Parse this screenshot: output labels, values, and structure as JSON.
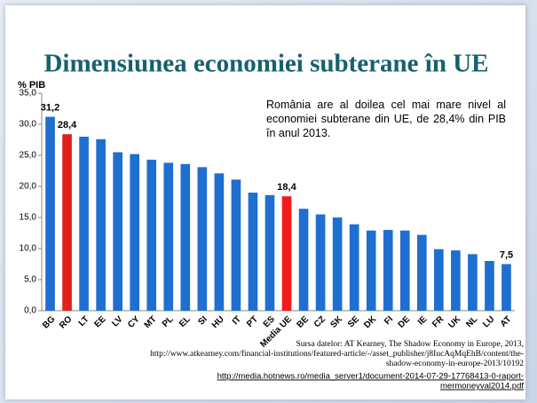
{
  "chart_data": {
    "type": "bar",
    "title": "Dimensiunea economiei subterane în UE",
    "y_label": "% PIB",
    "annotation": "România are al doilea cel mai mare nivel al economiei subterane din UE, de 28,4% din PIB în anul 2013.",
    "source": [
      "Sursa datelor: AT Kearney, The Shadow Economy in Europe, 2013,",
      "http://www.atkearney.com/financial-institutions/featured-article/-/asset_publisher/j8IucAqMqEhB/content/the-",
      "shadow-economy-in-europe-2013/10192"
    ],
    "link": [
      "http://media.hotnews.ro/media_server1/document-2014-07-29-17768413-0-raport-",
      "mermoneyval2014.pdf"
    ],
    "categories": [
      "BG",
      "RO",
      "LT",
      "EE",
      "LV",
      "CY",
      "MT",
      "PL",
      "EL",
      "SI",
      "HU",
      "IT",
      "PT",
      "ES",
      "Media UE",
      "BE",
      "CZ",
      "SK",
      "SE",
      "DK",
      "FI",
      "DE",
      "IE",
      "FR",
      "UK",
      "NL",
      "LU",
      "AT"
    ],
    "values": [
      31.2,
      28.4,
      28.0,
      27.6,
      25.5,
      25.2,
      24.3,
      23.8,
      23.6,
      23.1,
      22.1,
      21.1,
      19.0,
      18.6,
      18.4,
      16.4,
      15.5,
      15.0,
      13.9,
      12.9,
      13.0,
      12.9,
      12.2,
      9.9,
      9.7,
      9.1,
      8.0,
      7.5
    ],
    "value_labels": [
      "31,2",
      "28,4",
      null,
      null,
      null,
      null,
      null,
      null,
      null,
      null,
      null,
      null,
      null,
      null,
      "18,4",
      null,
      null,
      null,
      null,
      null,
      null,
      null,
      null,
      null,
      null,
      null,
      null,
      "7,5"
    ],
    "colors": [
      "#1f6fd0",
      "#e0201b",
      "#1f6fd0",
      "#1f6fd0",
      "#1f6fd0",
      "#1f6fd0",
      "#1f6fd0",
      "#1f6fd0",
      "#1f6fd0",
      "#1f6fd0",
      "#1f6fd0",
      "#1f6fd0",
      "#1f6fd0",
      "#1f6fd0",
      "#f21a1a",
      "#1f6fd0",
      "#1f6fd0",
      "#1f6fd0",
      "#1f6fd0",
      "#1f6fd0",
      "#1f6fd0",
      "#1f6fd0",
      "#1f6fd0",
      "#1f6fd0",
      "#1f6fd0",
      "#1f6fd0",
      "#1f6fd0",
      "#1f6fd0"
    ],
    "ylim": [
      0,
      35
    ],
    "yticks": [
      {
        "value": 0,
        "label": "0,0"
      },
      {
        "value": 5,
        "label": "5,0"
      },
      {
        "value": 10,
        "label": "10,0"
      },
      {
        "value": 15,
        "label": "15,0"
      },
      {
        "value": 20,
        "label": "20,0"
      },
      {
        "value": 25,
        "label": "25,0"
      },
      {
        "value": 30,
        "label": "30,0"
      },
      {
        "value": 35,
        "label": "35,0"
      }
    ],
    "grid": false
  }
}
